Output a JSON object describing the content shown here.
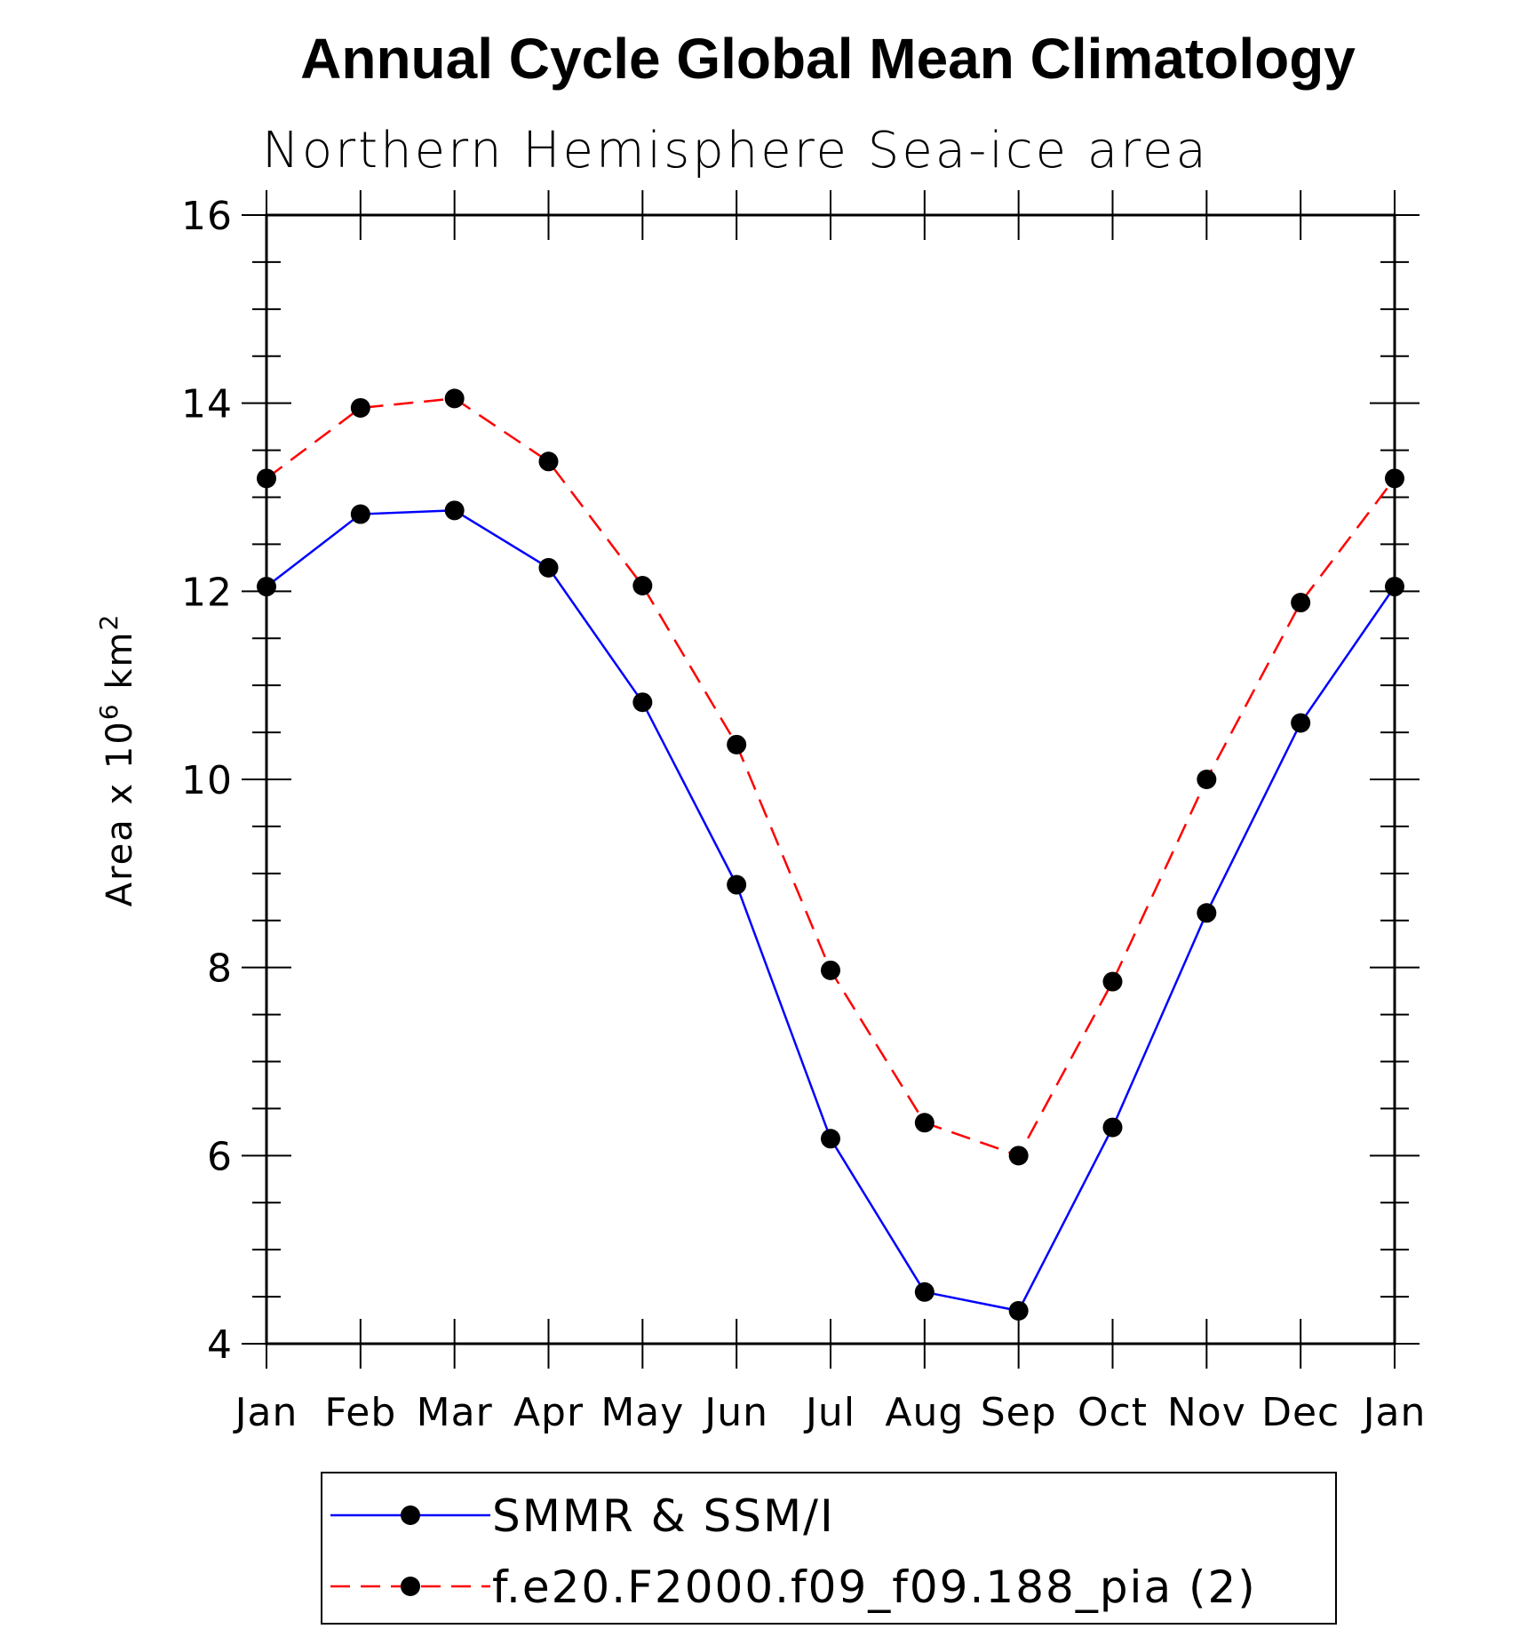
{
  "chart_data": {
    "type": "line",
    "title": "Annual Cycle Global Mean Climatology",
    "subtitle": "Northern Hemisphere Sea-ice area",
    "ylabel": "Area x 10^6 km^2",
    "ylabel_base": "Area x 10",
    "ylabel_exp1": "6",
    "ylabel_mid": " km",
    "ylabel_exp2": "2",
    "xlabel": "",
    "categories": [
      "Jan",
      "Feb",
      "Mar",
      "Apr",
      "May",
      "Jun",
      "Jul",
      "Aug",
      "Sep",
      "Oct",
      "Nov",
      "Dec",
      "Jan"
    ],
    "ylim": [
      4,
      16
    ],
    "yticks": [
      4,
      6,
      8,
      10,
      12,
      14,
      16
    ],
    "yticks_labels": [
      "4",
      "6",
      "8",
      "10",
      "12",
      "14",
      "16"
    ],
    "grid": false,
    "legend_position": "bottom",
    "series": [
      {
        "name": "SMMR & SSM/I",
        "color": "#0000ff",
        "line_style": "solid",
        "marker": "filled-circle",
        "values": [
          12.05,
          12.82,
          12.86,
          12.25,
          10.82,
          8.88,
          6.18,
          4.55,
          4.35,
          6.3,
          8.58,
          10.6,
          12.05
        ]
      },
      {
        "name": "f.e20.F2000.f09_f09.188_pia (2)",
        "color": "#ff0000",
        "line_style": "dashed",
        "marker": "filled-circle",
        "values": [
          13.2,
          13.95,
          14.05,
          13.38,
          12.06,
          10.37,
          7.97,
          6.35,
          6.0,
          7.85,
          10.0,
          11.88,
          13.2
        ]
      }
    ]
  }
}
